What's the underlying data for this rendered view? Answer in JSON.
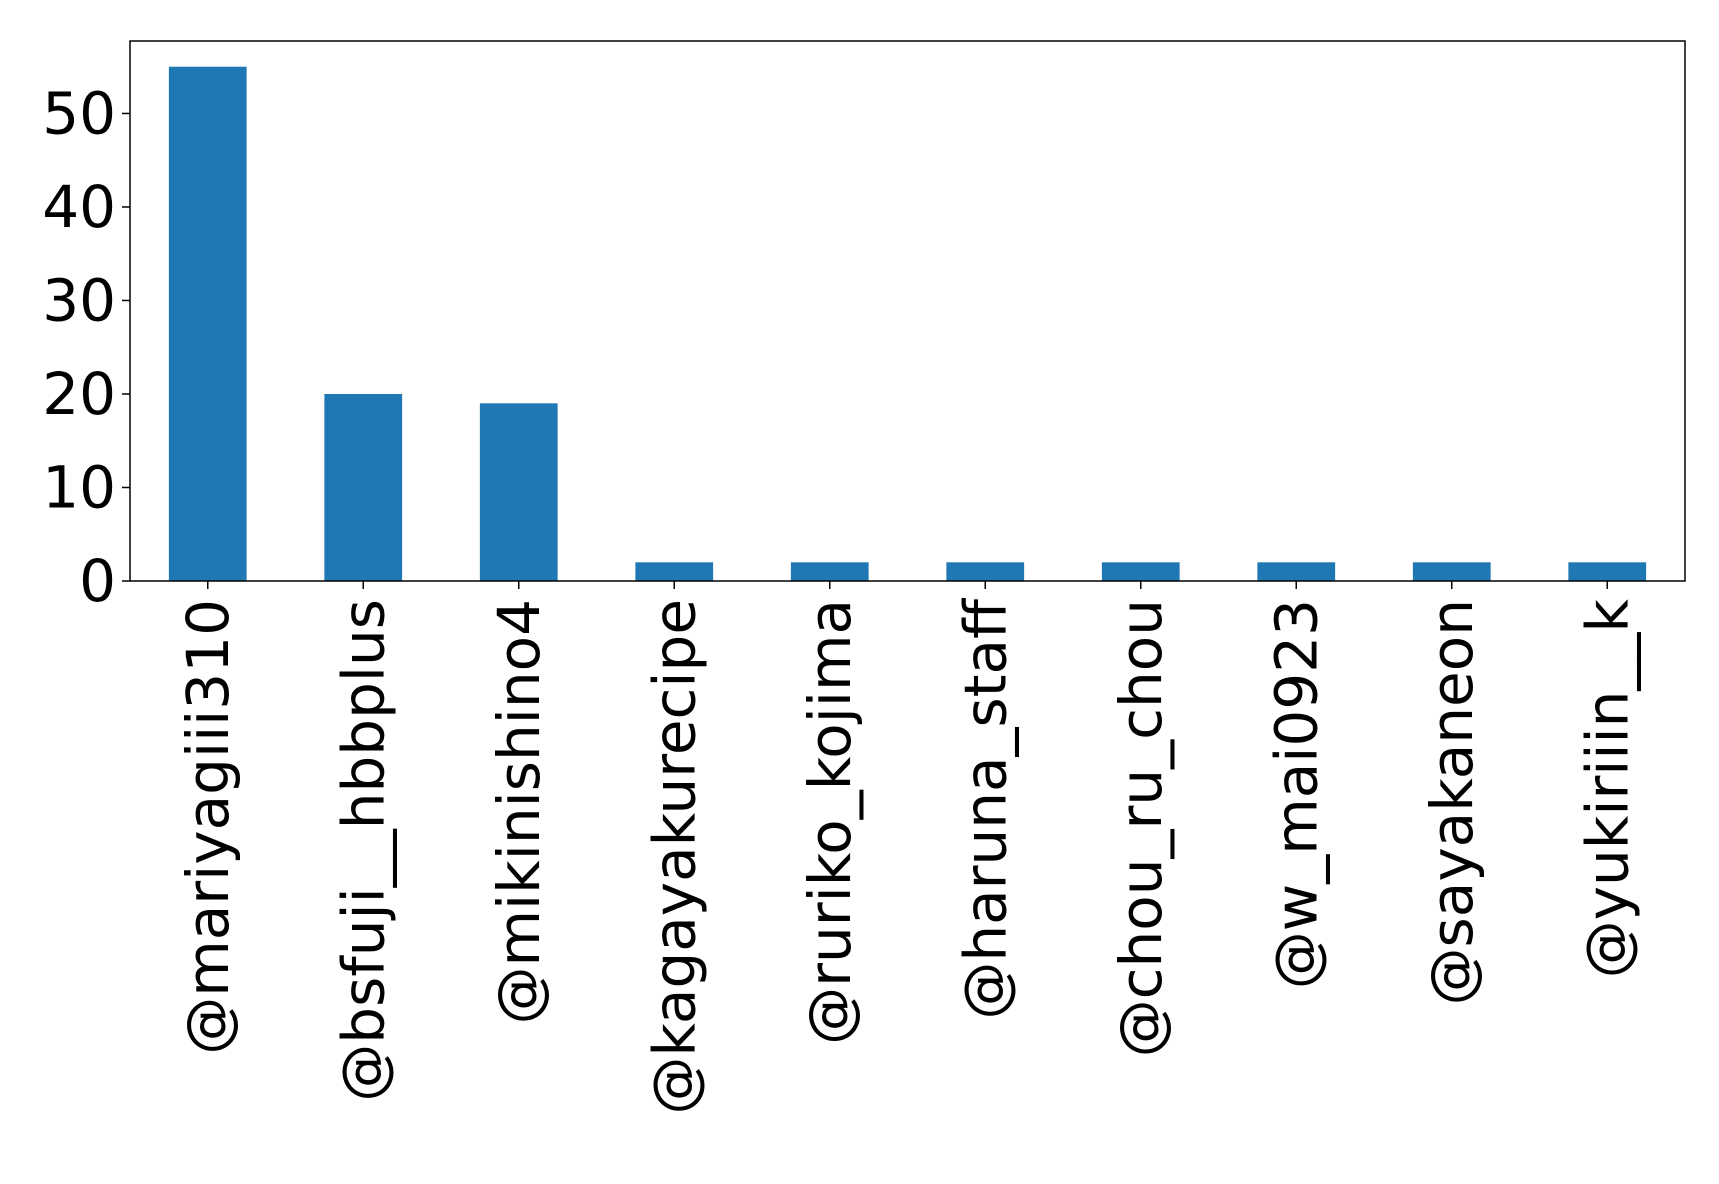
{
  "chart_data": {
    "type": "bar",
    "title": "",
    "xlabel": "",
    "ylabel": "",
    "categories": [
      "@mariyagiii310",
      "@bsfuji__hbbplus",
      "@mikinishino4",
      "@kagayakurecipe",
      "@ruriko_kojima",
      "@haruna_staff",
      "@chou_ru_chou",
      "@w_mai0923",
      "@sayakaneon",
      "@yukiriiin__k"
    ],
    "values": [
      55,
      20,
      19,
      2,
      2,
      2,
      2,
      2,
      2,
      2
    ],
    "ylim": [
      0,
      57.75
    ],
    "yticks": [
      0,
      10,
      20,
      30,
      40,
      50
    ],
    "bar_color": "#1f77b4",
    "grid": false,
    "legend": "none"
  }
}
